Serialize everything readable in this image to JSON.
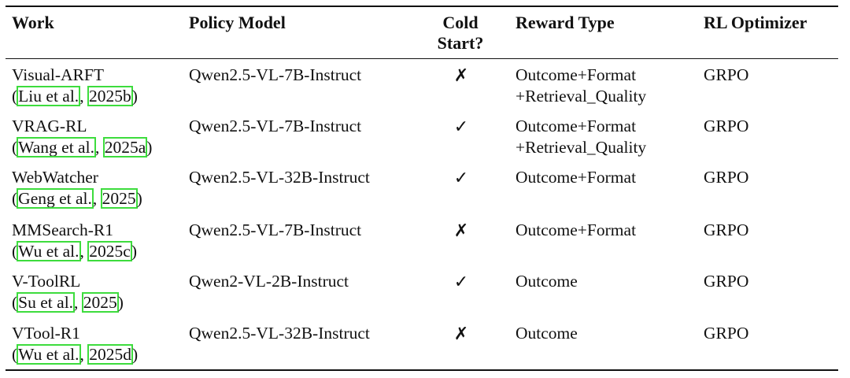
{
  "headers": {
    "work": "Work",
    "policy_model": "Policy Model",
    "cold_start_1": "Cold",
    "cold_start_2": "Start?",
    "reward_type": "Reward Type",
    "rl_optimizer": "RL Optimizer"
  },
  "rows": [
    {
      "work": "Visual-ARFT",
      "cite_open": "(",
      "cite_author": "Liu et al.",
      "cite_sep": ", ",
      "cite_year": "2025b",
      "cite_close": ")",
      "model": "Qwen2.5-VL-7B-Instruct",
      "cold_start": "✗",
      "reward_1": "Outcome+Format",
      "reward_2": "+Retrieval_Quality",
      "optimizer": "GRPO"
    },
    {
      "work": "VRAG-RL",
      "cite_open": "(",
      "cite_author": "Wang et al.",
      "cite_sep": ", ",
      "cite_year": "2025a",
      "cite_close": ")",
      "model": "Qwen2.5-VL-7B-Instruct",
      "cold_start": "✓",
      "reward_1": "Outcome+Format",
      "reward_2": "+Retrieval_Quality",
      "optimizer": "GRPO"
    },
    {
      "work": "WebWatcher",
      "cite_open": "(",
      "cite_author": "Geng et al.",
      "cite_sep": ", ",
      "cite_year": "2025",
      "cite_close": ")",
      "model": "Qwen2.5-VL-32B-Instruct",
      "cold_start": "✓",
      "reward_1": "Outcome+Format",
      "reward_2": "",
      "optimizer": "GRPO"
    },
    {
      "work": "MMSearch-R1",
      "cite_open": "(",
      "cite_author": "Wu et al.",
      "cite_sep": ", ",
      "cite_year": "2025c",
      "cite_close": ")",
      "model": "Qwen2.5-VL-7B-Instruct",
      "cold_start": "✗",
      "reward_1": "Outcome+Format",
      "reward_2": "",
      "optimizer": "GRPO"
    },
    {
      "work": "V-ToolRL",
      "cite_open": "(",
      "cite_author": "Su et al.",
      "cite_sep": ", ",
      "cite_year": "2025",
      "cite_close": ")",
      "model": "Qwen2-VL-2B-Instruct",
      "cold_start": "✓",
      "reward_1": "Outcome",
      "reward_2": "",
      "optimizer": "GRPO"
    },
    {
      "work": "VTool-R1",
      "cite_open": "(",
      "cite_author": "Wu et al.",
      "cite_sep": ", ",
      "cite_year": "2025d",
      "cite_close": ")",
      "model": "Qwen2.5-VL-32B-Instruct",
      "cold_start": "✗",
      "reward_1": "Outcome",
      "reward_2": "",
      "optimizer": "GRPO"
    }
  ]
}
